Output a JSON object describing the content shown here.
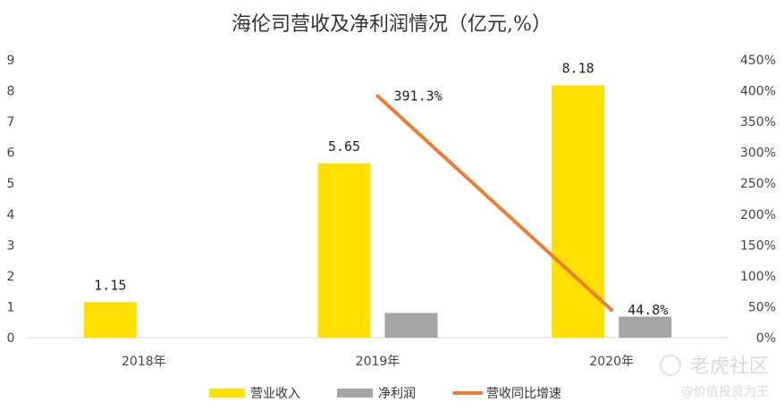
{
  "chart_data": {
    "type": "bar",
    "title": "海伦司营收及净利润情况（亿元,%）",
    "categories": [
      "2018年",
      "2019年",
      "2020年"
    ],
    "series": [
      {
        "name": "营业收入",
        "kind": "bar",
        "axis": "left",
        "color": "#FFE000",
        "values": [
          1.15,
          5.65,
          8.18
        ],
        "labels": [
          "1.15",
          "5.65",
          "8.18"
        ]
      },
      {
        "name": "净利润",
        "kind": "bar",
        "axis": "left",
        "color": "#A5A5A5",
        "values": [
          null,
          0.8,
          0.68
        ],
        "labels": []
      },
      {
        "name": "营收同比增速",
        "kind": "line",
        "axis": "right",
        "color": "#ED7D31",
        "values": [
          null,
          391.3,
          44.8
        ],
        "labels": [
          null,
          "391.3%",
          "44.8%"
        ]
      }
    ],
    "y_left": {
      "min": 0,
      "max": 9,
      "step": 1,
      "ticks": [
        "0",
        "1",
        "2",
        "3",
        "4",
        "5",
        "6",
        "7",
        "8",
        "9"
      ]
    },
    "y_right": {
      "min": 0,
      "max": 450,
      "step": 50,
      "ticks": [
        "0%",
        "50%",
        "100%",
        "150%",
        "200%",
        "250%",
        "300%",
        "350%",
        "400%",
        "450%"
      ]
    },
    "grid": false,
    "legend_position": "bottom"
  },
  "watermark": {
    "main": "老虎社区",
    "sub": "@价值投资为王"
  }
}
